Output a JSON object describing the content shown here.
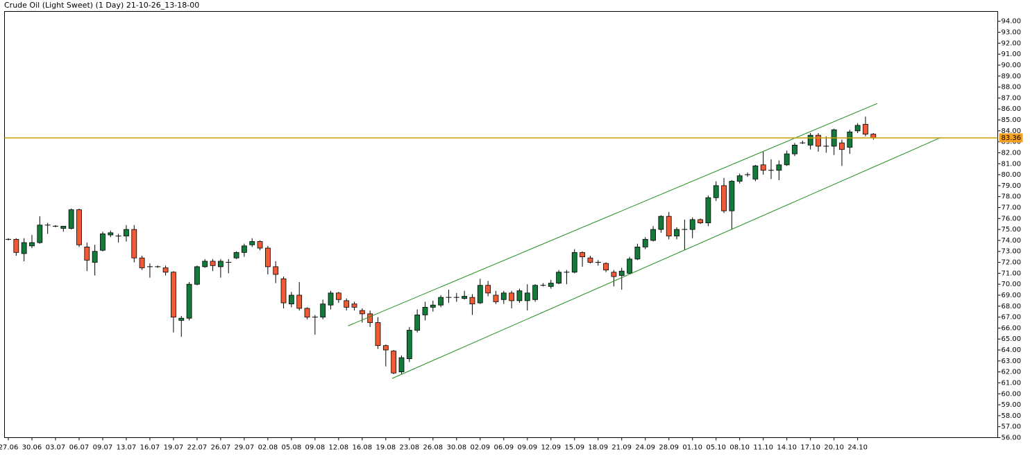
{
  "chart_data": {
    "type": "candlestick",
    "title": "Crude Oil (Light Sweet) (1 Day) 21-10-26_13-18-00",
    "categories": [
      "27.06",
      null,
      null,
      "30.06",
      null,
      null,
      "03.07",
      null,
      null,
      "06.07",
      null,
      null,
      "09.07",
      null,
      null,
      "13.07",
      null,
      null,
      "16.07",
      null,
      null,
      "19.07",
      null,
      null,
      "22.07",
      null,
      null,
      "26.07",
      null,
      null,
      "29.07",
      null,
      null,
      "02.08",
      null,
      null,
      "05.08",
      null,
      null,
      "09.08",
      null,
      null,
      "12.08",
      null,
      null,
      "16.08",
      null,
      null,
      "19.08",
      null,
      null,
      "23.08",
      null,
      null,
      "26.08",
      null,
      null,
      "30.08",
      null,
      null,
      "02.09",
      null,
      null,
      "06.09",
      null,
      null,
      "09.09",
      null,
      null,
      "12.09",
      null,
      null,
      "15.09",
      null,
      null,
      "18.09",
      null,
      null,
      "21.09",
      null,
      null,
      "24.09",
      null,
      null,
      "28.09",
      null,
      null,
      "01.10",
      null,
      null,
      "05.10",
      null,
      null,
      "08.10",
      null,
      null,
      "11.10",
      null,
      null,
      "14.10",
      null,
      null,
      "17.10",
      null,
      null,
      "20.10",
      null,
      null,
      "24.10",
      null,
      null
    ],
    "open": [
      74.1,
      74.1,
      72.8,
      73.5,
      73.8,
      75.4,
      75.3,
      75.1,
      75.1,
      76.8,
      73.4,
      72.0,
      73.1,
      74.5,
      74.4,
      74.4,
      75.0,
      72.4,
      71.6,
      71.6,
      71.5,
      71.1,
      66.7,
      66.9,
      70.0,
      71.6,
      72.1,
      71.6,
      72.0,
      72.4,
      72.9,
      73.6,
      73.9,
      73.3,
      71.6,
      70.5,
      68.2,
      69.0,
      67.8,
      67.0,
      67.0,
      68.1,
      69.2,
      68.5,
      68.2,
      67.6,
      67.3,
      66.5,
      64.4,
      63.9,
      62.0,
      63.2,
      65.8,
      67.2,
      67.9,
      68.1,
      68.8,
      68.8,
      68.7,
      68.8,
      68.3,
      69.9,
      69.0,
      68.6,
      69.2,
      68.5,
      68.5,
      68.6,
      69.9,
      69.8,
      70.1,
      71.1,
      71.1,
      72.9,
      72.4,
      72.0,
      71.9,
      71.1,
      70.8,
      71.0,
      72.3,
      73.4,
      74.0,
      75.0,
      76.2,
      74.4,
      75.0,
      75.0,
      75.9,
      75.6,
      77.9,
      79.0,
      76.7,
      79.4,
      80.0,
      79.6,
      80.9,
      80.4,
      80.4,
      80.9,
      81.9,
      82.9,
      82.7,
      83.6,
      82.6,
      82.6,
      82.9,
      82.5,
      84.0,
      84.6,
      83.7
    ],
    "high": [
      74.2,
      74.2,
      74.2,
      74.5,
      76.2,
      75.6,
      75.4,
      75.3,
      76.9,
      76.9,
      73.8,
      73.6,
      74.8,
      74.9,
      74.6,
      75.4,
      75.4,
      72.6,
      71.9,
      71.7,
      71.7,
      71.2,
      67.1,
      70.2,
      71.7,
      72.3,
      72.3,
      72.3,
      72.3,
      73.0,
      73.7,
      74.2,
      74.0,
      73.5,
      72.1,
      70.7,
      69.3,
      70.2,
      67.9,
      67.2,
      68.6,
      69.4,
      69.3,
      68.7,
      68.4,
      67.8,
      67.6,
      67.0,
      64.5,
      64.0,
      63.5,
      66.1,
      67.7,
      68.4,
      68.5,
      69.0,
      69.5,
      69.2,
      69.4,
      69.1,
      70.5,
      70.3,
      69.4,
      69.4,
      69.4,
      69.6,
      70.0,
      70.0,
      70.1,
      70.4,
      71.3,
      71.3,
      73.2,
      73.0,
      72.6,
      72.2,
      72.0,
      71.3,
      71.5,
      72.5,
      73.7,
      74.3,
      75.3,
      76.3,
      76.6,
      75.2,
      75.9,
      76.1,
      76.0,
      78.1,
      79.4,
      79.7,
      79.5,
      80.1,
      80.2,
      80.9,
      82.1,
      81.4,
      81.3,
      82.2,
      82.9,
      83.1,
      83.8,
      83.8,
      83.5,
      84.2,
      83.2,
      84.1,
      84.7,
      85.3,
      83.8
    ],
    "low": [
      74.0,
      72.6,
      72.1,
      73.3,
      73.7,
      74.6,
      75.2,
      74.8,
      75.0,
      73.4,
      71.2,
      70.8,
      73.0,
      74.3,
      73.8,
      73.9,
      72.0,
      71.3,
      70.6,
      71.5,
      70.8,
      65.6,
      65.2,
      66.7,
      69.9,
      71.5,
      71.2,
      70.6,
      71.0,
      72.3,
      72.5,
      73.4,
      73.1,
      70.9,
      70.1,
      67.8,
      67.9,
      67.6,
      66.8,
      65.4,
      66.8,
      67.7,
      68.3,
      67.6,
      67.6,
      66.5,
      66.1,
      64.1,
      62.5,
      61.8,
      61.8,
      62.9,
      65.6,
      66.7,
      67.5,
      67.9,
      68.3,
      68.4,
      68.6,
      67.2,
      68.2,
      68.9,
      68.2,
      68.2,
      67.8,
      68.3,
      67.6,
      68.4,
      69.8,
      69.6,
      70.0,
      70.0,
      71.0,
      71.6,
      71.9,
      71.7,
      71.1,
      69.8,
      69.5,
      70.9,
      72.2,
      73.2,
      73.9,
      74.7,
      74.1,
      74.1,
      73.1,
      74.2,
      75.5,
      75.3,
      77.6,
      76.5,
      75.0,
      79.2,
      79.8,
      79.4,
      80.0,
      79.6,
      79.5,
      80.8,
      81.7,
      82.8,
      82.3,
      82.1,
      82.0,
      81.8,
      80.8,
      81.9,
      83.8,
      83.5,
      83.2
    ],
    "close": [
      74.1,
      72.9,
      73.8,
      73.8,
      75.4,
      75.4,
      75.3,
      75.3,
      76.8,
      73.6,
      72.2,
      73.0,
      74.6,
      74.7,
      74.4,
      75.0,
      72.4,
      71.5,
      71.6,
      71.6,
      71.1,
      67.0,
      66.9,
      70.0,
      71.6,
      72.1,
      71.7,
      72.1,
      72.0,
      72.9,
      73.5,
      73.9,
      73.3,
      71.6,
      70.9,
      68.3,
      69.0,
      67.8,
      67.0,
      67.0,
      68.2,
      69.2,
      68.6,
      67.9,
      67.9,
      67.3,
      66.5,
      64.4,
      64.0,
      61.9,
      63.3,
      65.8,
      67.2,
      67.9,
      68.1,
      68.8,
      68.8,
      68.8,
      68.9,
      68.2,
      69.9,
      69.2,
      68.4,
      69.2,
      68.5,
      69.4,
      69.2,
      69.9,
      69.9,
      70.1,
      71.1,
      71.1,
      72.9,
      72.5,
      72.0,
      72.0,
      71.3,
      70.7,
      71.2,
      72.3,
      73.4,
      74.1,
      75.0,
      76.2,
      74.4,
      75.0,
      75.0,
      75.9,
      75.6,
      77.9,
      79.0,
      76.7,
      79.4,
      79.9,
      80.0,
      80.8,
      80.4,
      80.4,
      80.9,
      81.9,
      82.7,
      82.9,
      83.6,
      82.6,
      82.6,
      84.1,
      82.3,
      83.9,
      84.5,
      83.7,
      83.36
    ],
    "up_color": "#127a3a",
    "down_color": "#f05a35",
    "price_line": 83.36,
    "price_line_color": "#c9a100",
    "price_label_color": "#f5a020",
    "channel_color": "#1d8f1d",
    "channel": [
      {
        "x": [
          43.2,
          110.5
        ],
        "y": [
          66.2,
          86.5
        ]
      },
      {
        "x": [
          48.8,
          118.6
        ],
        "y": [
          61.4,
          83.4
        ]
      }
    ],
    "ylim": [
      56,
      94.9
    ],
    "yticks": [
      {
        "value": 56,
        "label": "56.00"
      },
      {
        "value": 57,
        "label": "57.00"
      },
      {
        "value": 58,
        "label": "58.00"
      },
      {
        "value": 59,
        "label": "59.00"
      },
      {
        "value": 60,
        "label": "60.00"
      },
      {
        "value": 61,
        "label": "61.00"
      },
      {
        "value": 62,
        "label": "62.00"
      },
      {
        "value": 63,
        "label": "63.00"
      },
      {
        "value": 64,
        "label": "64.00"
      },
      {
        "value": 65,
        "label": "65.00"
      },
      {
        "value": 66,
        "label": "66.00"
      },
      {
        "value": 67,
        "label": "67.00"
      },
      {
        "value": 68,
        "label": "68.00"
      },
      {
        "value": 69,
        "label": "69.00"
      },
      {
        "value": 70,
        "label": "70.00"
      },
      {
        "value": 71,
        "label": "71.00"
      },
      {
        "value": 72,
        "label": "72.00"
      },
      {
        "value": 73,
        "label": "73.00"
      },
      {
        "value": 74,
        "label": "74.00"
      },
      {
        "value": 75,
        "label": "75.00"
      },
      {
        "value": 76,
        "label": "76.00"
      },
      {
        "value": 77,
        "label": "77.00"
      },
      {
        "value": 78,
        "label": "78.00"
      },
      {
        "value": 79,
        "label": "79.00"
      },
      {
        "value": 80,
        "label": "80.00"
      },
      {
        "value": 81,
        "label": "81.00"
      },
      {
        "value": 82,
        "label": "82.00"
      },
      {
        "value": 83,
        "label": "83.00"
      },
      {
        "value": 84,
        "label": "84.00"
      },
      {
        "value": 85,
        "label": "85.00"
      },
      {
        "value": 86,
        "label": "86.00"
      },
      {
        "value": 87,
        "label": "87.00"
      },
      {
        "value": 88,
        "label": "88.00"
      },
      {
        "value": 89,
        "label": "89.00"
      },
      {
        "value": 90,
        "label": "90.00"
      },
      {
        "value": 91,
        "label": "91.00"
      },
      {
        "value": 92,
        "label": "92.00"
      },
      {
        "value": 93,
        "label": "93.00"
      },
      {
        "value": 94,
        "label": "94.00"
      }
    ]
  }
}
